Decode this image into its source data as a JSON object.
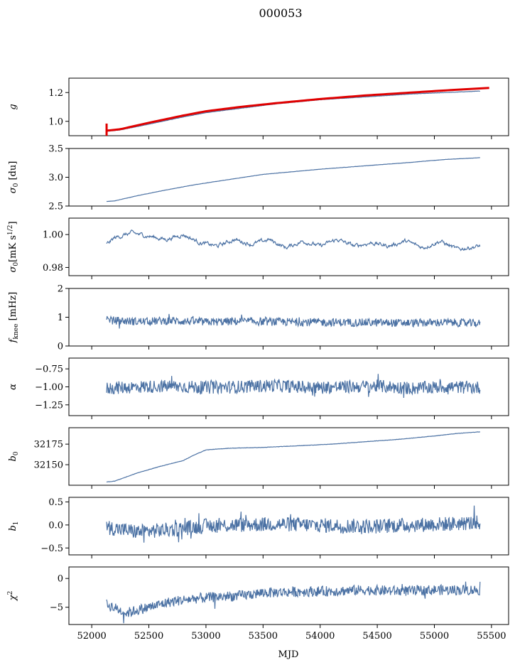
{
  "figure": {
    "title": "000053",
    "xlabel": "MJD",
    "line_color": "#4c72a4",
    "fit_color": "#e00000"
  },
  "chart_data": [
    {
      "type": "line",
      "ylabel_html": "<tspan font-style='italic'>g</tspan>",
      "xlim": [
        51800,
        55650
      ],
      "ylim": [
        0.9,
        1.3
      ],
      "yticks": [
        1.0,
        1.2
      ],
      "ytick_labels": [
        "1.0",
        "1.2"
      ],
      "series": [
        {
          "style": "line",
          "color": "#4c72a4",
          "x": [
            52130,
            52250,
            52500,
            52800,
            53000,
            53300,
            53600,
            54000,
            54400,
            54800,
            55100,
            55400
          ],
          "y": [
            0.93,
            0.94,
            0.98,
            1.03,
            1.06,
            1.09,
            1.12,
            1.15,
            1.17,
            1.19,
            1.2,
            1.21
          ]
        },
        {
          "style": "fit",
          "color": "#e00000",
          "x": [
            52130,
            52250,
            52500,
            52800,
            53000,
            53300,
            53600,
            54000,
            54400,
            54800,
            55100,
            55480
          ],
          "y": [
            0.935,
            0.945,
            0.99,
            1.04,
            1.07,
            1.1,
            1.125,
            1.155,
            1.18,
            1.2,
            1.215,
            1.232
          ]
        }
      ]
    },
    {
      "type": "line",
      "ylabel_html": "<tspan font-style='italic'>σ</tspan><tspan dy='3' font-size='9'>0</tspan><tspan dy='-3'> [du]</tspan>",
      "xlim": [
        51800,
        55650
      ],
      "ylim": [
        2.5,
        3.5
      ],
      "yticks": [
        2.5,
        3.0,
        3.5
      ],
      "ytick_labels": [
        "2.5",
        "3.0",
        "3.5"
      ],
      "series": [
        {
          "style": "line",
          "color": "#4c72a4",
          "x": [
            52130,
            52200,
            52400,
            52600,
            52900,
            53200,
            53500,
            54000,
            54400,
            54800,
            55100,
            55400
          ],
          "y": [
            2.58,
            2.59,
            2.68,
            2.76,
            2.87,
            2.96,
            3.05,
            3.14,
            3.2,
            3.26,
            3.31,
            3.34
          ]
        }
      ]
    },
    {
      "type": "line",
      "ylabel_html": "<tspan font-style='italic'>σ</tspan><tspan dy='3' font-size='9'>0</tspan><tspan dy='-3'>[mK s</tspan><tspan dy='-5' font-size='9'>1/2</tspan><tspan dy='5'>]</tspan>",
      "xlim": [
        51800,
        55650
      ],
      "ylim": [
        0.975,
        1.01
      ],
      "yticks": [
        0.98,
        1.0
      ],
      "ytick_labels": [
        "0.98",
        "1.00"
      ],
      "series": [
        {
          "style": "line",
          "color": "#4c72a4",
          "x": [
            52130,
            52200,
            52350,
            52500,
            52650,
            52800,
            52950,
            53100,
            53250,
            53400,
            53550,
            53700,
            53850,
            54000,
            54150,
            54300,
            54450,
            54600,
            54750,
            54900,
            55050,
            55200,
            55400
          ],
          "y": [
            0.994,
            0.998,
            1.001,
            0.999,
            0.997,
            1.0,
            0.995,
            0.993,
            0.997,
            0.994,
            0.997,
            0.992,
            0.996,
            0.993,
            0.997,
            0.993,
            0.995,
            0.993,
            0.996,
            0.992,
            0.996,
            0.991,
            0.993
          ]
        }
      ]
    },
    {
      "type": "line",
      "ylabel_html": "<tspan font-style='italic'>f</tspan><tspan dy='3' font-size='9'>knee</tspan><tspan dy='-3'> [mHz]</tspan>",
      "xlim": [
        51800,
        55650
      ],
      "ylim": [
        0,
        2
      ],
      "yticks": [
        0,
        1,
        2
      ],
      "ytick_labels": [
        "0",
        "1",
        "2"
      ],
      "series": [
        {
          "style": "line",
          "color": "#4c72a4",
          "x": [
            52130,
            52400,
            52700,
            53000,
            53300,
            53600,
            53900,
            54200,
            54500,
            54800,
            55100,
            55400
          ],
          "y": [
            0.9,
            0.85,
            0.88,
            0.83,
            0.86,
            0.84,
            0.83,
            0.82,
            0.81,
            0.8,
            0.82,
            0.78
          ]
        }
      ]
    },
    {
      "type": "line",
      "ylabel_html": "<tspan font-style='italic'>α</tspan>",
      "xlim": [
        51800,
        55650
      ],
      "ylim": [
        -1.4,
        -0.6
      ],
      "yticks": [
        -1.25,
        -1.0,
        -0.75
      ],
      "ytick_labels": [
        "−1.25",
        "−1.00",
        "−0.75"
      ],
      "series": [
        {
          "style": "line",
          "color": "#4c72a4",
          "x": [
            52130,
            52400,
            52700,
            53000,
            53300,
            53600,
            53900,
            54200,
            54500,
            54800,
            55100,
            55400
          ],
          "y": [
            -1.02,
            -1.0,
            -0.99,
            -1.01,
            -1.0,
            -0.98,
            -1.01,
            -1.0,
            -0.99,
            -1.02,
            -1.0,
            -1.01
          ]
        }
      ]
    },
    {
      "type": "line",
      "ylabel_html": "<tspan font-style='italic'>b</tspan><tspan dy='3' font-size='9'>0</tspan>",
      "xlim": [
        51800,
        55650
      ],
      "ylim": [
        32125,
        32195
      ],
      "yticks": [
        32150,
        32175
      ],
      "ytick_labels": [
        "32150",
        "32175"
      ],
      "series": [
        {
          "style": "line",
          "color": "#4c72a4",
          "x": [
            52130,
            52200,
            52400,
            52600,
            52800,
            52900,
            53000,
            53200,
            53500,
            53800,
            54100,
            54400,
            54700,
            55000,
            55200,
            55400
          ],
          "y": [
            32129,
            32130,
            32140,
            32148,
            32155,
            32162,
            32168,
            32170,
            32171,
            32173,
            32175,
            32178,
            32181,
            32185,
            32188,
            32190
          ]
        }
      ]
    },
    {
      "type": "line",
      "ylabel_html": "<tspan font-style='italic'>b</tspan><tspan dy='3' font-size='9'>1</tspan>",
      "xlim": [
        51800,
        55650
      ],
      "ylim": [
        -0.65,
        0.6
      ],
      "yticks": [
        -0.5,
        0.0,
        0.5
      ],
      "ytick_labels": [
        "−0.5",
        "0.0",
        "0.5"
      ],
      "series": [
        {
          "style": "line",
          "color": "#4c72a4",
          "x": [
            52130,
            52400,
            52700,
            53000,
            53300,
            53600,
            53900,
            54200,
            54500,
            54800,
            55100,
            55400
          ],
          "y": [
            -0.05,
            -0.15,
            -0.1,
            -0.02,
            0.0,
            0.02,
            0.0,
            -0.02,
            -0.03,
            0.0,
            0.02,
            0.05
          ]
        }
      ]
    },
    {
      "type": "line",
      "ylabel_html": "<tspan font-style='italic'>χ</tspan><tspan dy='-5' font-size='9'>2</tspan>",
      "xlim": [
        51800,
        55650
      ],
      "ylim": [
        -8,
        2
      ],
      "yticks": [
        -5,
        0
      ],
      "ytick_labels": [
        "−5",
        "0"
      ],
      "series": [
        {
          "style": "line",
          "color": "#4c72a4",
          "x": [
            52130,
            52300,
            52500,
            52700,
            52900,
            53100,
            53300,
            53500,
            53800,
            54100,
            54400,
            54700,
            55000,
            55400
          ],
          "y": [
            -4.5,
            -6.0,
            -5.0,
            -4.0,
            -3.5,
            -3.2,
            -3.0,
            -2.5,
            -2.3,
            -2.2,
            -2.0,
            -2.2,
            -2.0,
            -2.0
          ]
        }
      ]
    }
  ],
  "xaxis": {
    "ticks": [
      52000,
      52500,
      53000,
      53500,
      54000,
      54500,
      55000,
      55500
    ],
    "tick_labels": [
      "52000",
      "52500",
      "53000",
      "53500",
      "54000",
      "54500",
      "55000",
      "55500"
    ]
  }
}
